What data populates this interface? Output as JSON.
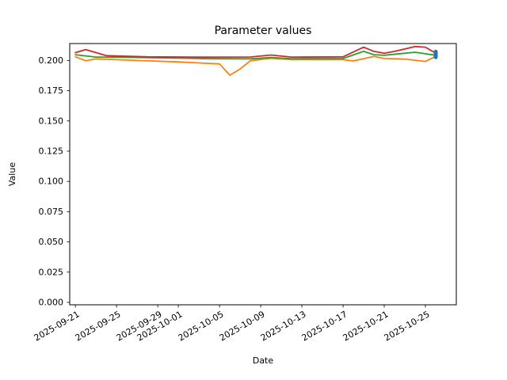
{
  "chart_data": {
    "type": "line",
    "title": "Parameter values",
    "xlabel": "Date",
    "ylabel": "Value",
    "x_epoch": "2025-09-21",
    "x_ticks": [
      "2025-09-21",
      "2025-09-25",
      "2025-09-29",
      "2025-10-01",
      "2025-10-05",
      "2025-10-09",
      "2025-10-13",
      "2025-10-17",
      "2025-10-21",
      "2025-10-25"
    ],
    "y_ticks": [
      0.0,
      0.025,
      0.05,
      0.075,
      0.1,
      0.125,
      0.15,
      0.175,
      0.2
    ],
    "y_tick_labels": [
      "0.000",
      "0.025",
      "0.050",
      "0.075",
      "0.100",
      "0.125",
      "0.150",
      "0.175",
      "0.200"
    ],
    "xlim_days": [
      -0.55,
      37.0
    ],
    "ylim": [
      -0.002,
      0.214
    ],
    "grid": false,
    "legend": false,
    "tick_label_rotation_deg": 30,
    "axis_color": "#000000",
    "series": [
      {
        "name": "series-orange",
        "color": "#ff7f0e",
        "line_width": 1.8,
        "points": [
          [
            "2025-09-21",
            0.2031
          ],
          [
            "2025-09-22",
            0.1998
          ],
          [
            "2025-09-23",
            0.2013
          ],
          [
            "2025-09-27",
            0.2
          ],
          [
            "2025-10-01",
            0.1988
          ],
          [
            "2025-10-04",
            0.1976
          ],
          [
            "2025-10-05",
            0.1972
          ],
          [
            "2025-10-06",
            0.1878
          ],
          [
            "2025-10-07",
            0.193
          ],
          [
            "2025-10-08",
            0.1998
          ],
          [
            "2025-10-10",
            0.2018
          ],
          [
            "2025-10-12",
            0.2007
          ],
          [
            "2025-10-17",
            0.2007
          ],
          [
            "2025-10-18",
            0.1996
          ],
          [
            "2025-10-20",
            0.2033
          ],
          [
            "2025-10-21",
            0.2016
          ],
          [
            "2025-10-23",
            0.2012
          ],
          [
            "2025-10-25",
            0.1992
          ],
          [
            "2025-10-26",
            0.2033
          ]
        ]
      },
      {
        "name": "series-green",
        "color": "#2ca02c",
        "line_width": 1.8,
        "points": [
          [
            "2025-09-21",
            0.2048
          ],
          [
            "2025-09-23",
            0.2028
          ],
          [
            "2025-09-27",
            0.2025
          ],
          [
            "2025-10-03",
            0.2016
          ],
          [
            "2025-10-08",
            0.2014
          ],
          [
            "2025-10-10",
            0.2024
          ],
          [
            "2025-10-12",
            0.2015
          ],
          [
            "2025-10-17",
            0.2016
          ],
          [
            "2025-10-19",
            0.2075
          ],
          [
            "2025-10-20",
            0.2048
          ],
          [
            "2025-10-21",
            0.2043
          ],
          [
            "2025-10-24",
            0.2068
          ],
          [
            "2025-10-26",
            0.2043
          ]
        ]
      },
      {
        "name": "series-red",
        "color": "#d62728",
        "line_width": 1.8,
        "points": [
          [
            "2025-09-21",
            0.2065
          ],
          [
            "2025-09-22",
            0.209
          ],
          [
            "2025-09-24",
            0.204
          ],
          [
            "2025-09-28",
            0.203
          ],
          [
            "2025-10-03",
            0.2028
          ],
          [
            "2025-10-08",
            0.2029
          ],
          [
            "2025-10-10",
            0.2045
          ],
          [
            "2025-10-12",
            0.2028
          ],
          [
            "2025-10-17",
            0.203
          ],
          [
            "2025-10-19",
            0.211
          ],
          [
            "2025-10-20",
            0.2075
          ],
          [
            "2025-10-21",
            0.206
          ],
          [
            "2025-10-22",
            0.2075
          ],
          [
            "2025-10-24",
            0.2115
          ],
          [
            "2025-10-25",
            0.211
          ],
          [
            "2025-10-26",
            0.206
          ]
        ]
      },
      {
        "name": "series-blue-marker",
        "color": "#1f77b4",
        "marker": "vline",
        "points": [
          [
            "2025-10-26",
            0.205
          ]
        ]
      }
    ]
  }
}
